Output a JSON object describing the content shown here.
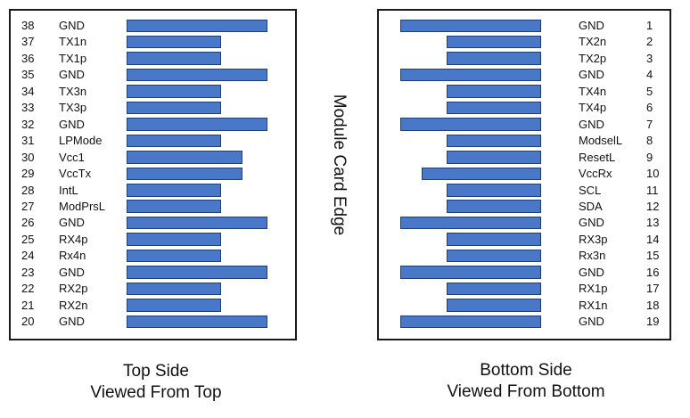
{
  "top_side": {
    "pins": [
      {
        "number": "38",
        "name": "GND",
        "bar": "long"
      },
      {
        "number": "37",
        "name": "TX1n",
        "bar": "short"
      },
      {
        "number": "36",
        "name": "TX1p",
        "bar": "short"
      },
      {
        "number": "35",
        "name": "GND",
        "bar": "long"
      },
      {
        "number": "34",
        "name": "TX3n",
        "bar": "short"
      },
      {
        "number": "33",
        "name": "TX3p",
        "bar": "short"
      },
      {
        "number": "32",
        "name": "GND",
        "bar": "long"
      },
      {
        "number": "31",
        "name": "LPMode",
        "bar": "short"
      },
      {
        "number": "30",
        "name": "Vcc1",
        "bar": "medium"
      },
      {
        "number": "29",
        "name": "VccTx",
        "bar": "medium"
      },
      {
        "number": "28",
        "name": "IntL",
        "bar": "short"
      },
      {
        "number": "27",
        "name": "ModPrsL",
        "bar": "short"
      },
      {
        "number": "26",
        "name": "GND",
        "bar": "long"
      },
      {
        "number": "25",
        "name": "RX4p",
        "bar": "short"
      },
      {
        "number": "24",
        "name": "Rx4n",
        "bar": "short"
      },
      {
        "number": "23",
        "name": "GND",
        "bar": "long"
      },
      {
        "number": "22",
        "name": "RX2p",
        "bar": "short"
      },
      {
        "number": "21",
        "name": "RX2n",
        "bar": "short"
      },
      {
        "number": "20",
        "name": "GND",
        "bar": "long"
      }
    ],
    "caption_line1": "Top Side",
    "caption_line2": "Viewed From Top"
  },
  "bottom_side": {
    "pins": [
      {
        "number": "1",
        "name": "GND",
        "bar": "long"
      },
      {
        "number": "2",
        "name": "TX2n",
        "bar": "short"
      },
      {
        "number": "3",
        "name": "TX2p",
        "bar": "short"
      },
      {
        "number": "4",
        "name": "GND",
        "bar": "long"
      },
      {
        "number": "5",
        "name": "TX4n",
        "bar": "short"
      },
      {
        "number": "6",
        "name": "TX4p",
        "bar": "short"
      },
      {
        "number": "7",
        "name": "GND",
        "bar": "long"
      },
      {
        "number": "8",
        "name": "ModselL",
        "bar": "short"
      },
      {
        "number": "9",
        "name": "ResetL",
        "bar": "short"
      },
      {
        "number": "10",
        "name": "VccRx",
        "bar": "medium"
      },
      {
        "number": "11",
        "name": "SCL",
        "bar": "short"
      },
      {
        "number": "12",
        "name": "SDA",
        "bar": "short"
      },
      {
        "number": "13",
        "name": "GND",
        "bar": "long"
      },
      {
        "number": "14",
        "name": "RX3p",
        "bar": "short"
      },
      {
        "number": "15",
        "name": "Rx3n",
        "bar": "short"
      },
      {
        "number": "16",
        "name": "GND",
        "bar": "long"
      },
      {
        "number": "17",
        "name": "RX1p",
        "bar": "short"
      },
      {
        "number": "18",
        "name": "RX1n",
        "bar": "short"
      },
      {
        "number": "19",
        "name": "GND",
        "bar": "long"
      }
    ],
    "caption_line1": "Bottom Side",
    "caption_line2": "Viewed From Bottom"
  },
  "edge_label": "Module Card Edge",
  "colors": {
    "pad_fill": "#4a78c8",
    "pad_border": "#1f3f7a",
    "frame": "#1a1a1a"
  }
}
